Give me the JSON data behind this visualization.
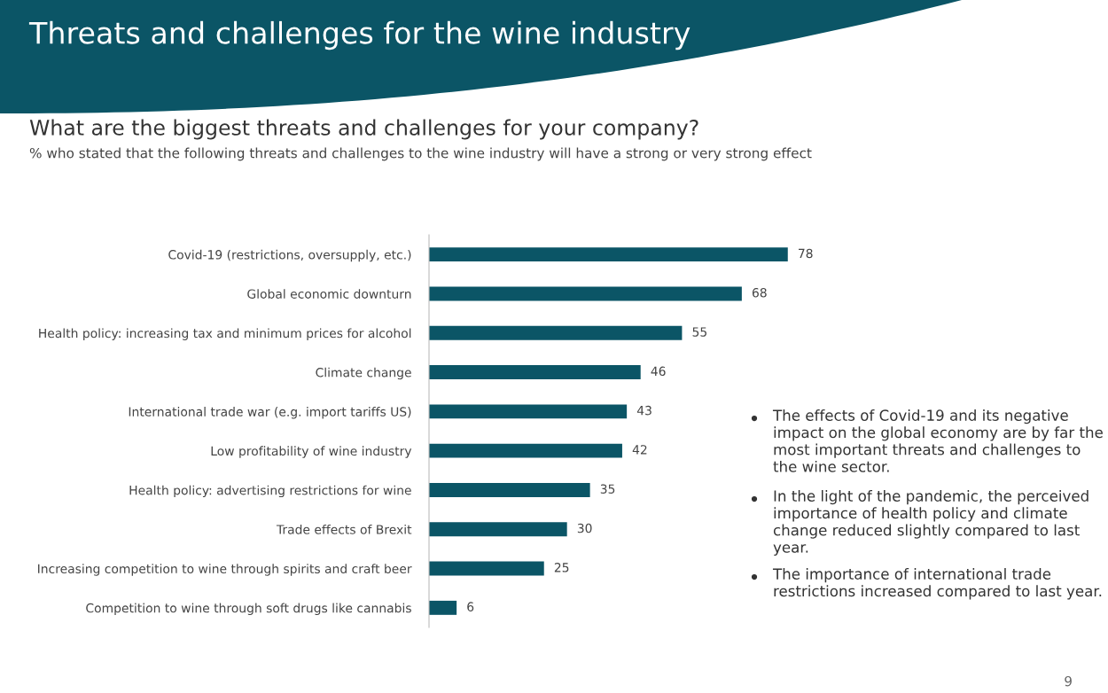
{
  "chart_data": {
    "type": "bar",
    "orientation": "horizontal",
    "title": "Threats and challenges for the wine industry",
    "subtitle": "What are the biggest threats and challenges for your company?",
    "categories": [
      "Covid-19 (restrictions, oversupply, etc.)",
      "Global economic downturn",
      "Health policy: increasing tax and minimum prices for alcohol",
      "Climate change",
      "International trade war (e.g. import tariffs US)",
      "Low profitability of wine industry",
      "Health policy: advertising restrictions for wine",
      "Trade effects of Brexit",
      "Increasing competition to wine through spirits and craft beer",
      "Competition to wine through soft drugs like cannabis"
    ],
    "values": [
      78,
      68,
      55,
      46,
      43,
      42,
      35,
      30,
      25,
      6
    ],
    "color": "#0b5566",
    "data_labels": true,
    "grid": false,
    "legend": false,
    "tick_labels": "y",
    "annotations": [
      "% who stated that the following threats and challenges to the wine industry will have a strong or very strong effect",
      "The effects of Covid-19 and its negative impact on the global economy are by far the most important threats and challenges to the wine sector.",
      "In the light of the pandemic, the perceived importance of health policy and climate change reduced slightly compared to last year.",
      "The importance of international trade restrictions increased compared to last year.",
      "9"
    ]
  }
}
